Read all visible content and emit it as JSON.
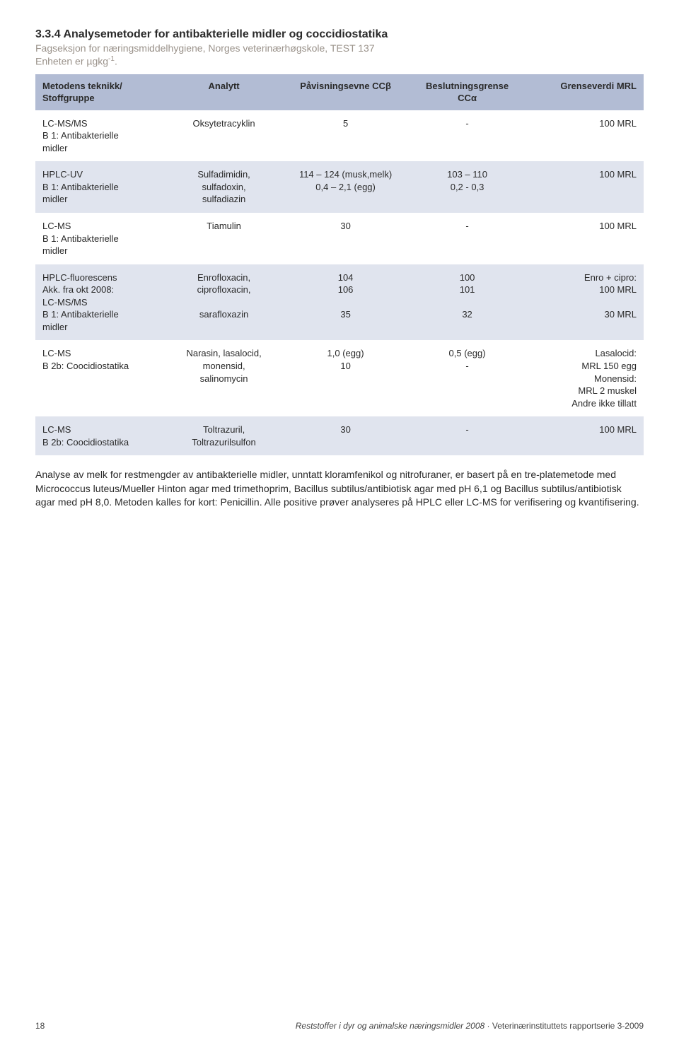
{
  "section": {
    "title": "3.3.4 Analysemetoder for antibakterielle midler og coccidiostatika",
    "subtitle": "Fagseksjon for næringsmiddelhygiene, Norges veterinærhøgskole, TEST 137",
    "unit_prefix": "Enheten er µgkg",
    "unit_exp": "-1",
    "unit_suffix": "."
  },
  "table": {
    "headers": [
      "Metodens teknikk/\nStoffgruppe",
      "Analytt",
      "Påvisningsevne CCβ",
      "Beslutningsgrense\nCCα",
      "Grenseverdi MRL"
    ],
    "header_bg": "#b2bcd4",
    "row_colors": {
      "odd": "#ffffff",
      "even": "#e0e4ee"
    },
    "rows": [
      {
        "method": [
          "LC-MS/MS",
          "B 1: Antibakterielle",
          "midler"
        ],
        "analyte": [
          "Oksytetracyklin"
        ],
        "cc_beta": [
          "5"
        ],
        "cc_alpha": [
          "-"
        ],
        "mrl": [
          "100 MRL"
        ]
      },
      {
        "method": [
          "HPLC-UV",
          "B 1: Antibakterielle",
          "midler"
        ],
        "analyte": [
          "Sulfadimidin,",
          "sulfadoxin,",
          "sulfadiazin"
        ],
        "cc_beta": [
          "114 – 124 (musk,melk)",
          "0,4 – 2,1 (egg)"
        ],
        "cc_alpha": [
          "103 – 110",
          "0,2 - 0,3"
        ],
        "mrl": [
          "100 MRL"
        ]
      },
      {
        "method": [
          "LC-MS",
          "B 1: Antibakterielle",
          "midler"
        ],
        "analyte": [
          "Tiamulin"
        ],
        "cc_beta": [
          "30"
        ],
        "cc_alpha": [
          "-"
        ],
        "mrl": [
          "100 MRL"
        ]
      },
      {
        "method": [
          "HPLC-fluorescens",
          "Akk. fra okt 2008:",
          "LC-MS/MS",
          "B 1: Antibakterielle",
          "midler"
        ],
        "analyte": [
          "Enrofloxacin,",
          "ciprofloxacin,",
          "",
          "sarafloxazin"
        ],
        "cc_beta": [
          "104",
          "106",
          "",
          "35"
        ],
        "cc_alpha": [
          "100",
          "101",
          "",
          "32"
        ],
        "mrl": [
          "Enro + cipro:",
          "100 MRL",
          "",
          "30 MRL"
        ]
      },
      {
        "method": [
          "LC-MS",
          "B 2b: Coocidiostatika"
        ],
        "analyte": [
          "Narasin, lasalocid,",
          "monensid,",
          "salinomycin"
        ],
        "cc_beta": [
          "1,0 (egg)",
          "10"
        ],
        "cc_alpha": [
          "0,5 (egg)",
          "-"
        ],
        "mrl": [
          "Lasalocid:",
          "MRL 150 egg",
          "Monensid:",
          "MRL 2 muskel",
          "Andre ikke tillatt"
        ]
      },
      {
        "method": [
          "LC-MS",
          "B 2b: Coocidiostatika"
        ],
        "analyte": [
          "Toltrazuril,",
          "Toltrazurilsulfon"
        ],
        "cc_beta": [
          "30"
        ],
        "cc_alpha": [
          "-"
        ],
        "mrl": [
          "100 MRL"
        ]
      }
    ]
  },
  "paragraph": "Analyse av melk for restmengder av antibakterielle midler, unntatt kloramfenikol og nitrofuraner, er basert på en tre-platemetode med Micrococcus luteus/Mueller Hinton agar med trimethoprim, Bacillus subtilus/antibiotisk agar med pH 6,1 og Bacillus subtilus/antibiotisk agar med pH 8,0. Metoden kalles for kort: Penicillin. Alle positive prøver analyseres på HPLC eller LC-MS for verifisering og kvantifisering.",
  "footer": {
    "page": "18",
    "doc_italic": "Reststoffer i dyr og animalske næringsmidler 2008",
    "doc_sep": " · ",
    "doc_normal": "Veterinærinstituttets rapportserie 3-2009"
  }
}
